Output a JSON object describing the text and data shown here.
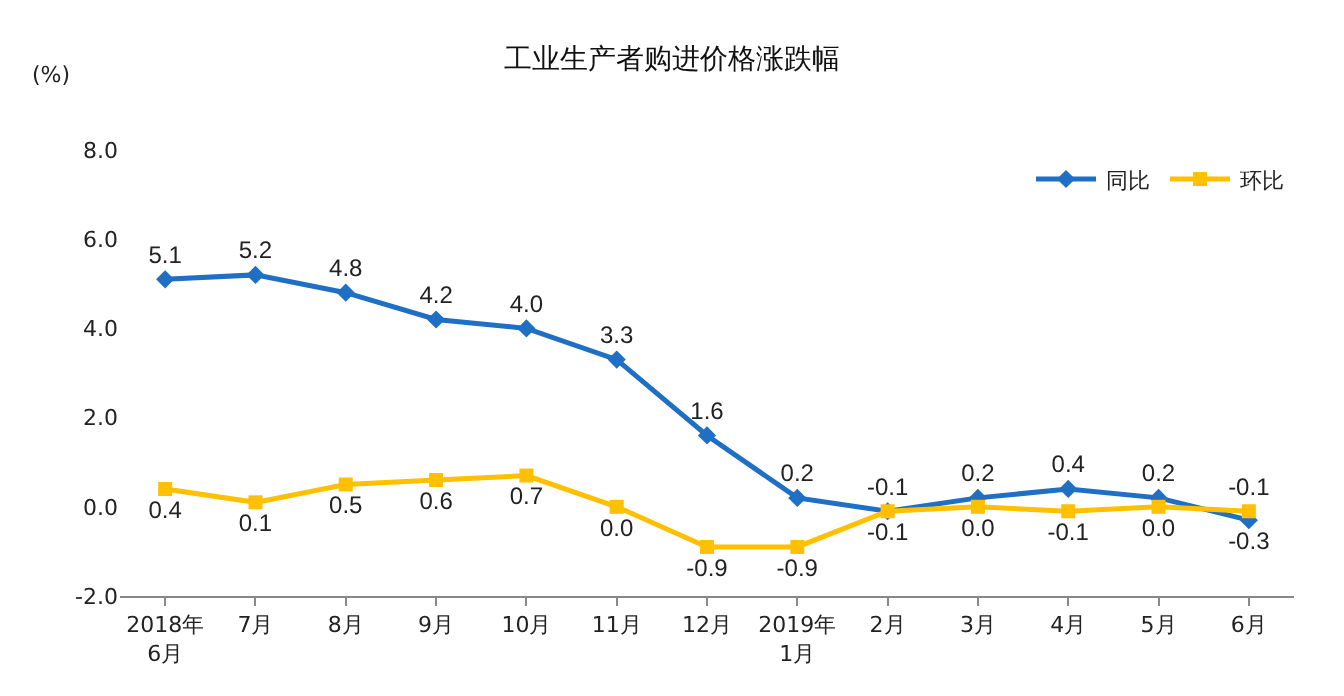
{
  "chart_data": {
    "type": "line",
    "title": "工业生产者购进价格涨跌幅",
    "ylabel": "(%)",
    "categories": [
      "2018年\n6月",
      "7月",
      "8月",
      "9月",
      "10月",
      "11月",
      "12月",
      "2019年\n1月",
      "2月",
      "3月",
      "4月",
      "5月",
      "6月"
    ],
    "series": [
      {
        "name": "同比",
        "color": "#1f6fc5",
        "marker": "diamond",
        "values": [
          5.1,
          5.2,
          4.8,
          4.2,
          4.0,
          3.3,
          1.6,
          0.2,
          -0.1,
          0.2,
          0.4,
          0.2,
          -0.3
        ],
        "value_labels": [
          "5.1",
          "5.2",
          "4.8",
          "4.2",
          "4.0",
          "3.3",
          "1.6",
          "0.2",
          "-0.1",
          "0.2",
          "0.4",
          "0.2",
          "-0.3"
        ]
      },
      {
        "name": "环比",
        "color": "#ffc000",
        "marker": "square",
        "values": [
          0.4,
          0.1,
          0.5,
          0.6,
          0.7,
          0.0,
          -0.9,
          -0.9,
          -0.1,
          0.0,
          -0.1,
          0.0,
          -0.1
        ],
        "value_labels": [
          "0.4",
          "0.1",
          "0.5",
          "0.6",
          "0.7",
          "0.0",
          "-0.9",
          "-0.9",
          "-0.1",
          "0.0",
          "-0.1",
          "0.0",
          "-0.1"
        ]
      }
    ],
    "ylim": [
      -2,
      8
    ],
    "yticks": [
      {
        "value": -2,
        "label": "-2.0"
      },
      {
        "value": 0,
        "label": "0.0"
      },
      {
        "value": 2,
        "label": "2.0"
      },
      {
        "value": 4,
        "label": "4.0"
      },
      {
        "value": 6,
        "label": "6.0"
      },
      {
        "value": 8,
        "label": "8.0"
      }
    ],
    "legend": "top right"
  }
}
